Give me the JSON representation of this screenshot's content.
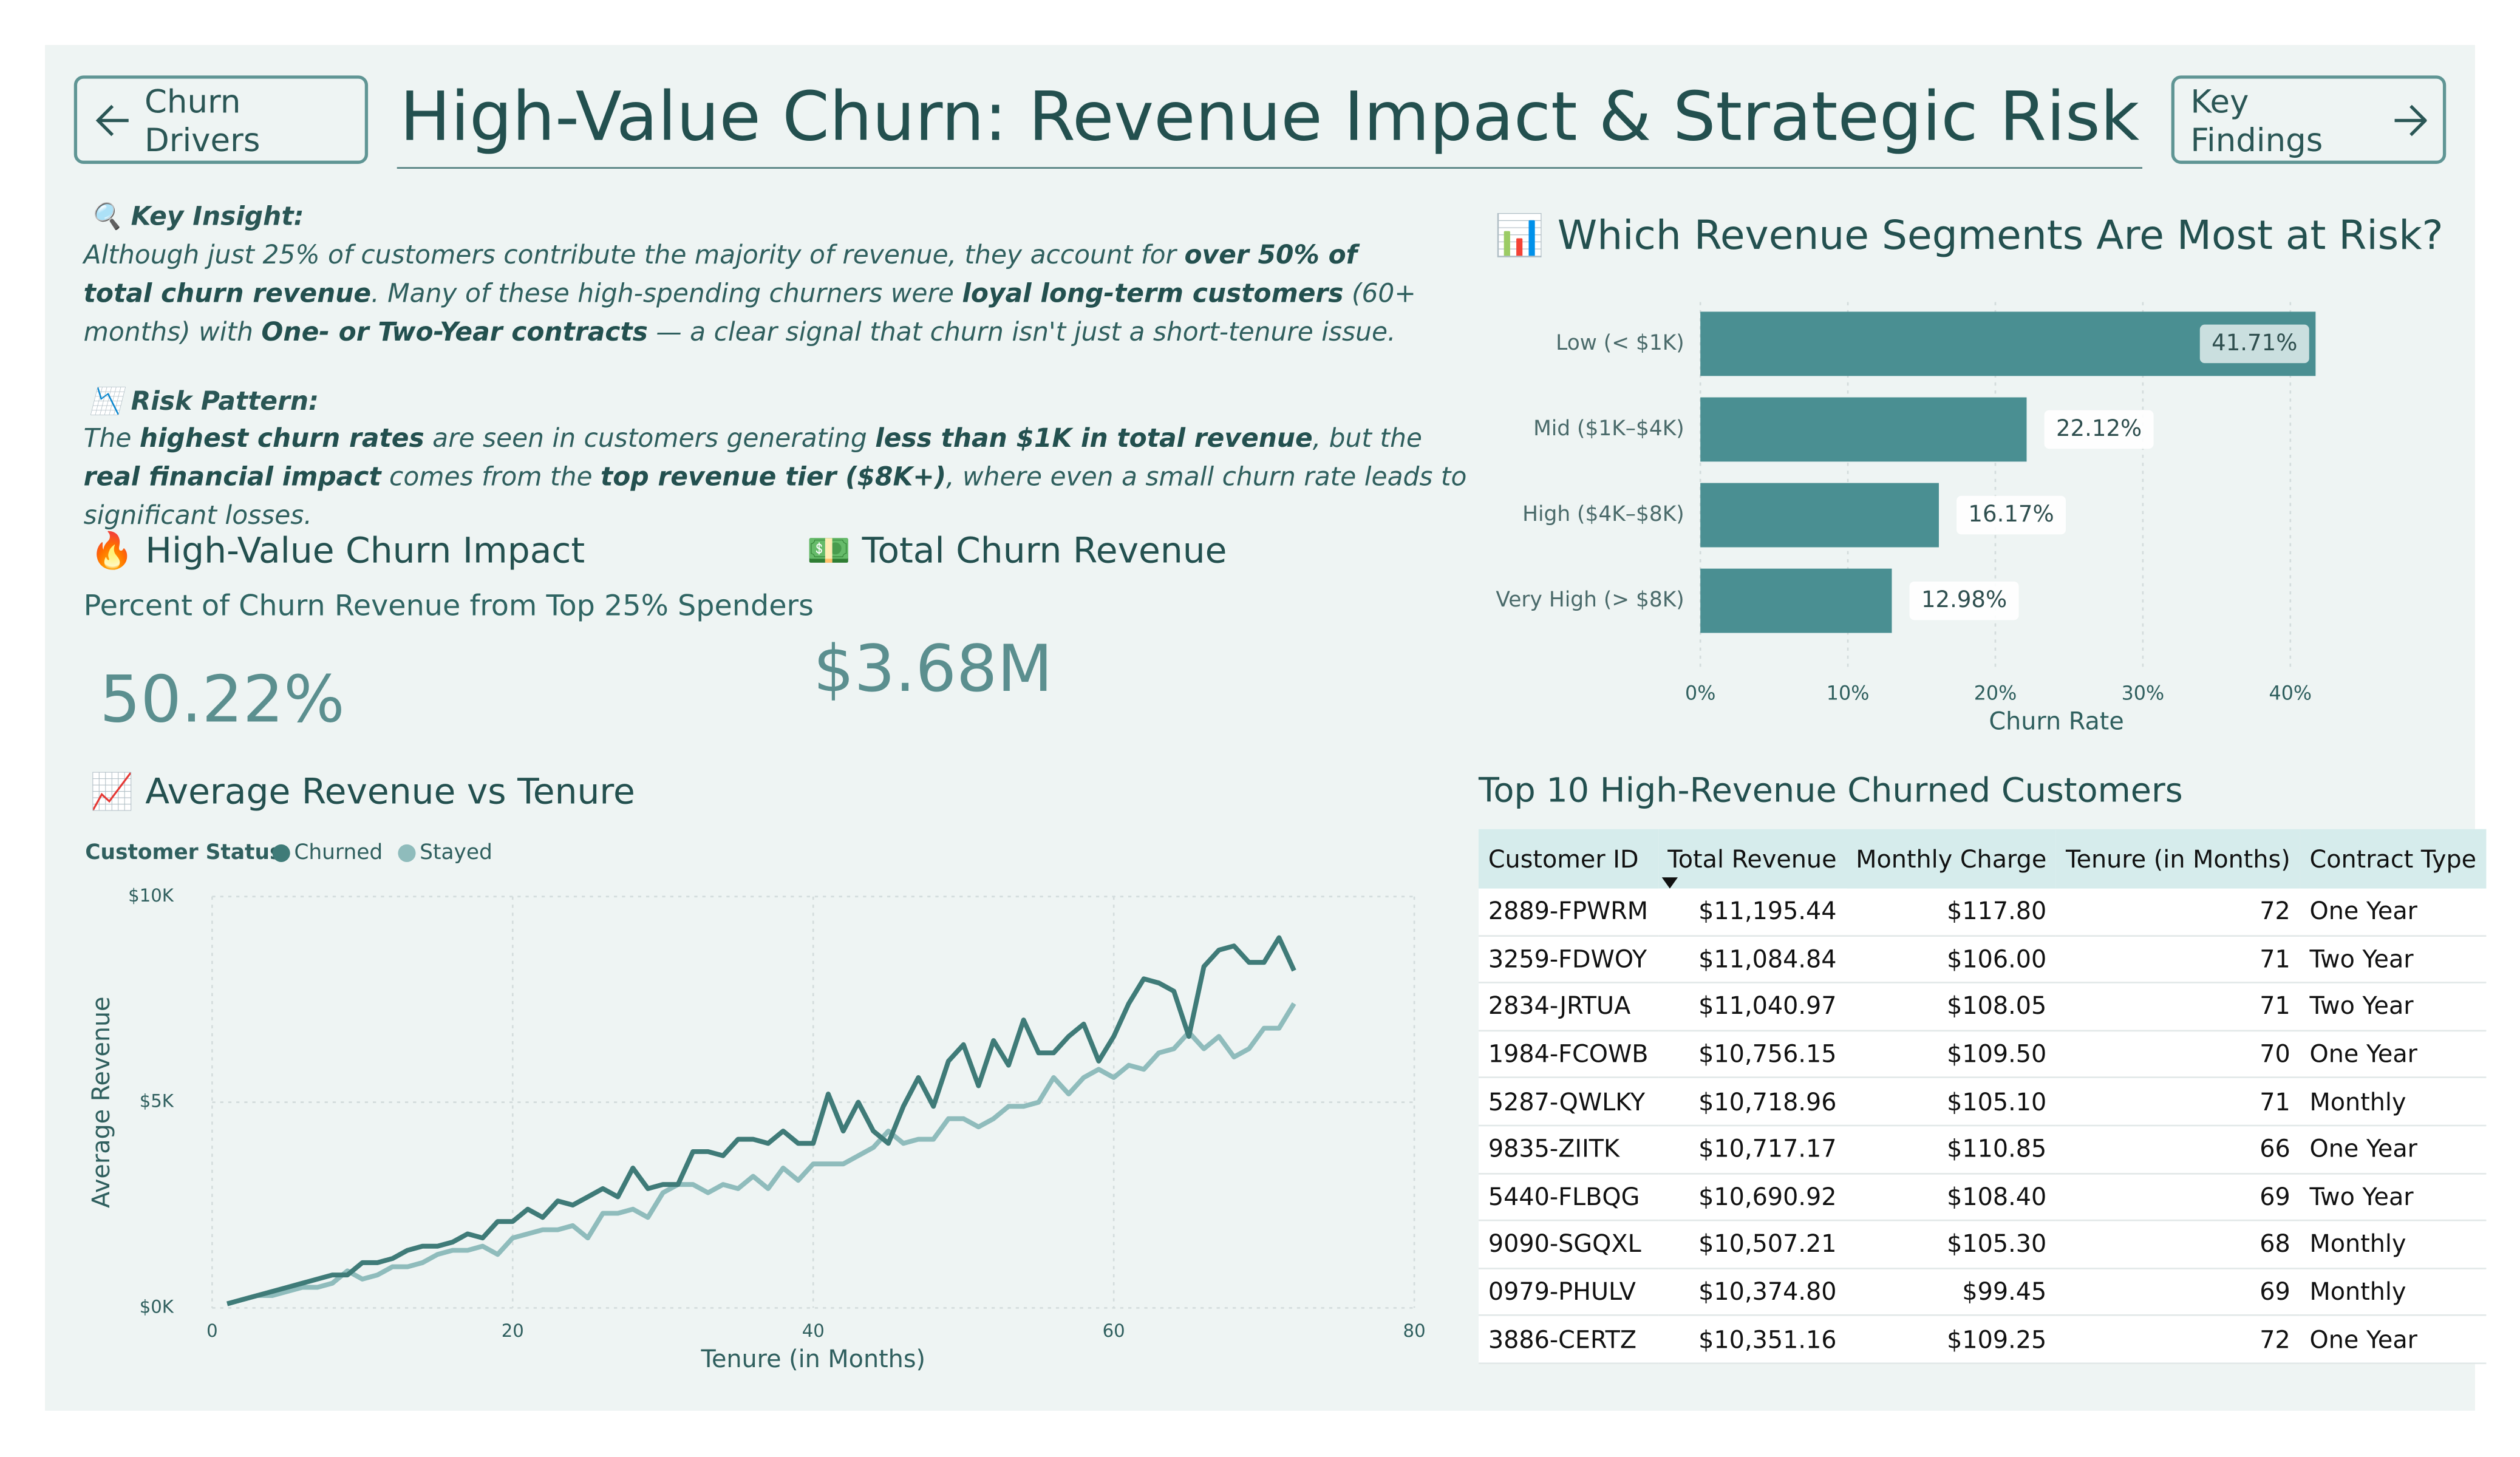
{
  "header": {
    "title": "High-Value Churn: Revenue Impact & Strategic Risk",
    "back_button": "Churn Drivers",
    "next_button": "Key Findings"
  },
  "insights": [
    {
      "heading": "🔍 Key Insight:",
      "segments": [
        {
          "text": "Although just 25% of customers contribute the majority of revenue, they account for "
        },
        {
          "text": "over 50% of total churn revenue",
          "bold": true
        },
        {
          "text": ". Many of these high-spending churners were "
        },
        {
          "text": "loyal long-term customers",
          "bold": true
        },
        {
          "text": " (60+ months) with "
        },
        {
          "text": "One- or Two-Year contracts",
          "bold": true
        },
        {
          "text": " — a clear signal that churn isn't just a short-tenure issue."
        }
      ]
    },
    {
      "heading": "📉 Risk Pattern:",
      "segments": [
        {
          "text": "The "
        },
        {
          "text": "highest churn rates",
          "bold": true
        },
        {
          "text": " are seen in customers generating "
        },
        {
          "text": "less than $1K in total revenue",
          "bold": true
        },
        {
          "text": ", but the "
        },
        {
          "text": "real financial impact",
          "bold": true
        },
        {
          "text": " comes from the "
        },
        {
          "text": "top revenue tier ($8K+)",
          "bold": true
        },
        {
          "text": ", where even a small churn rate leads to significant losses."
        }
      ]
    }
  ],
  "kpis": [
    {
      "title": "🔥 High-Value Churn Impact",
      "subtitle": "Percent of Churn Revenue from Top 25% Spenders",
      "value": "50.22%"
    },
    {
      "title": "💵 Total Churn Revenue",
      "value": "$3.68M"
    }
  ],
  "chart_data": [
    {
      "type": "hbar",
      "title": "📊 Which Revenue Segments Are Most at Risk?",
      "categories": [
        "Low (< $1K)",
        "Mid ($1K–$4K)",
        "High ($4K–$8K)",
        "Very High (> $8K)"
      ],
      "values": [
        41.71,
        22.12,
        16.17,
        12.98
      ],
      "value_labels": [
        "41.71%",
        "22.12%",
        "16.17%",
        "12.98%"
      ],
      "color": "#4a8f92",
      "x_label": "Churn Rate",
      "xlim": [
        0,
        45
      ],
      "xticks": [
        {
          "value": 0,
          "label": "0%"
        },
        {
          "value": 10,
          "label": "10%"
        },
        {
          "value": 20,
          "label": "20%"
        },
        {
          "value": 30,
          "label": "30%"
        },
        {
          "value": 40,
          "label": "40%"
        }
      ],
      "grid": true
    },
    {
      "type": "line",
      "title": "📈 Average Revenue vs Tenure",
      "legend_title": "Customer Status",
      "x_label": "Tenure (in Months)",
      "y_label": "Average Revenue",
      "x": [
        1,
        2,
        3,
        4,
        5,
        6,
        7,
        8,
        9,
        10,
        11,
        12,
        13,
        14,
        15,
        16,
        17,
        18,
        19,
        20,
        21,
        22,
        23,
        24,
        25,
        26,
        27,
        28,
        29,
        30,
        31,
        32,
        33,
        34,
        35,
        36,
        37,
        38,
        39,
        40,
        41,
        42,
        43,
        44,
        45,
        46,
        47,
        48,
        49,
        50,
        51,
        52,
        53,
        54,
        55,
        56,
        57,
        58,
        59,
        60,
        61,
        62,
        63,
        64,
        65,
        66,
        67,
        68,
        69,
        70,
        71,
        72
      ],
      "series": [
        {
          "name": "Churned",
          "color": "#3f7b78",
          "values": [
            100,
            200,
            300,
            400,
            500,
            600,
            700,
            800,
            800,
            1100,
            1100,
            1200,
            1400,
            1500,
            1500,
            1600,
            1800,
            1700,
            2100,
            2100,
            2400,
            2200,
            2600,
            2500,
            2700,
            2900,
            2700,
            3400,
            2900,
            3000,
            3000,
            3800,
            3800,
            3700,
            4100,
            4100,
            4000,
            4300,
            4000,
            4000,
            5200,
            4300,
            5000,
            4300,
            4000,
            4900,
            5600,
            4900,
            6000,
            6400,
            5400,
            6500,
            5900,
            7000,
            6200,
            6200,
            6600,
            6900,
            6000,
            6600,
            7400,
            8000,
            7900,
            7700,
            6600,
            8300,
            8700,
            8800,
            8400,
            8400,
            9000,
            8200
          ]
        },
        {
          "name": "Stayed",
          "color": "#8fbcbc",
          "values": [
            100,
            200,
            300,
            300,
            400,
            500,
            500,
            600,
            900,
            700,
            800,
            1000,
            1000,
            1100,
            1300,
            1400,
            1400,
            1500,
            1300,
            1700,
            1800,
            1900,
            1900,
            2000,
            1700,
            2300,
            2300,
            2400,
            2200,
            2800,
            3000,
            3000,
            2800,
            3000,
            2900,
            3200,
            2900,
            3400,
            3100,
            3500,
            3500,
            3500,
            3700,
            3900,
            4300,
            4000,
            4100,
            4100,
            4600,
            4600,
            4400,
            4600,
            4900,
            4900,
            5000,
            5600,
            5200,
            5600,
            5800,
            5600,
            5900,
            5800,
            6200,
            6300,
            6700,
            6300,
            6600,
            6100,
            6300,
            6800,
            6800,
            7400
          ]
        }
      ],
      "xlim": [
        0,
        80
      ],
      "xticks": [
        0,
        20,
        40,
        60,
        80
      ],
      "ylim": [
        0,
        10000
      ],
      "yticks": [
        {
          "value": 0,
          "label": "$0K"
        },
        {
          "value": 5000,
          "label": "$5K"
        },
        {
          "value": 10000,
          "label": "$10K"
        }
      ],
      "grid": true
    }
  ],
  "table": {
    "title": "Top 10 High-Revenue Churned Customers",
    "columns": [
      "Customer ID",
      "Total Revenue",
      "Monthly Charge",
      "Tenure (in Months)",
      "Contract Type"
    ],
    "rows": [
      [
        "2889-FPWRM",
        "$11,195.44",
        "$117.80",
        "72",
        "One Year"
      ],
      [
        "3259-FDWOY",
        "$11,084.84",
        "$106.00",
        "71",
        "Two Year"
      ],
      [
        "2834-JRTUA",
        "$11,040.97",
        "$108.05",
        "71",
        "Two Year"
      ],
      [
        "1984-FCOWB",
        "$10,756.15",
        "$109.50",
        "70",
        "One Year"
      ],
      [
        "5287-QWLKY",
        "$10,718.96",
        "$105.10",
        "71",
        "Monthly"
      ],
      [
        "9835-ZIITK",
        "$10,717.17",
        "$110.85",
        "66",
        "One Year"
      ],
      [
        "5440-FLBQG",
        "$10,690.92",
        "$108.40",
        "69",
        "Two Year"
      ],
      [
        "9090-SGQXL",
        "$10,507.21",
        "$105.30",
        "68",
        "Monthly"
      ],
      [
        "0979-PHULV",
        "$10,374.80",
        "$99.45",
        "69",
        "Monthly"
      ],
      [
        "3886-CERTZ",
        "$10,351.16",
        "$109.25",
        "72",
        "One Year"
      ]
    ]
  }
}
